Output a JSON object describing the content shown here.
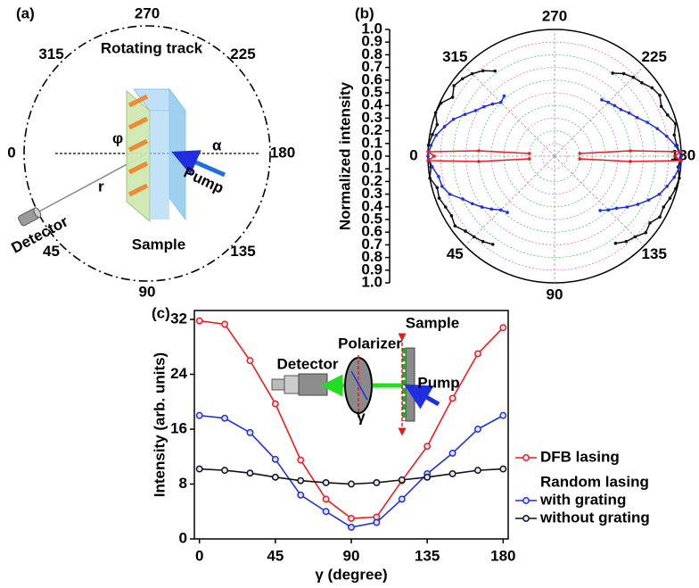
{
  "diagram_a": {
    "panel_label": "(a)",
    "track_label": "Rotating track",
    "angle_labels": [
      0,
      45,
      90,
      135,
      180,
      225,
      270,
      315
    ],
    "phi": "φ",
    "alpha": "α",
    "radius": "r",
    "pump": "Pump",
    "detector": "Detector",
    "sample": "Sample"
  },
  "chart_data": [
    {
      "type": "polar",
      "panel_label": "(b)",
      "y_label": "Normalized intensity",
      "rlim": [
        0,
        1
      ],
      "rticks": [
        {
          "value": 0,
          "label": "0.0"
        },
        {
          "value": 0.1,
          "label": "0.1"
        },
        {
          "value": 0.2,
          "label": "0.2"
        },
        {
          "value": 0.3,
          "label": "0.3"
        },
        {
          "value": 0.4,
          "label": "0.4"
        },
        {
          "value": 0.5,
          "label": "0.5"
        },
        {
          "value": 0.6,
          "label": "0.6"
        },
        {
          "value": 0.7,
          "label": "0.7"
        },
        {
          "value": 0.8,
          "label": "0.8"
        },
        {
          "value": 0.9,
          "label": "0.9"
        },
        {
          "value": 1,
          "label": "1.0"
        }
      ],
      "thetaticks": [
        0,
        45,
        90,
        135,
        180,
        225,
        270,
        315
      ],
      "series": [
        {
          "color": "#111111",
          "theta": [
            305,
            310,
            315,
            320,
            325,
            330,
            335,
            340,
            345,
            350,
            355,
            0,
            5,
            10,
            15,
            20,
            25,
            30,
            35,
            40,
            45,
            50,
            55,
            null,
            125,
            130,
            135,
            140,
            145,
            150,
            155,
            160,
            165,
            170,
            175,
            180,
            185,
            190,
            195,
            200,
            205,
            210,
            215,
            220,
            225,
            230,
            235
          ],
          "r": [
            0.82,
            0.88,
            0.92,
            0.95,
            0.97,
            0.93,
            0.99,
            1.0,
            0.96,
            0.98,
            1.0,
            1.0,
            0.98,
            1.0,
            0.96,
            0.97,
            0.95,
            0.94,
            0.96,
            0.92,
            0.9,
            0.88,
            0.85,
            null,
            0.84,
            0.88,
            0.9,
            0.94,
            0.92,
            0.96,
            0.95,
            0.97,
            0.99,
            1.0,
            0.98,
            1.0,
            0.97,
            0.96,
            0.99,
            0.95,
            0.93,
            0.96,
            0.94,
            0.9,
            0.88,
            0.85,
            0.8
          ]
        },
        {
          "color": "#1f2fe0",
          "theta": [
            310,
            315,
            320,
            325,
            330,
            335,
            340,
            345,
            350,
            355,
            0,
            5,
            10,
            15,
            20,
            25,
            30,
            35,
            40,
            45,
            50,
            null,
            130,
            135,
            140,
            145,
            150,
            155,
            160,
            165,
            170,
            175,
            180,
            185,
            190,
            195,
            200,
            205,
            210,
            215,
            220,
            225,
            230
          ],
          "r": [
            0.62,
            0.6,
            0.64,
            0.68,
            0.72,
            0.78,
            0.85,
            0.9,
            0.95,
            0.98,
            1.0,
            0.97,
            0.93,
            0.92,
            0.88,
            0.8,
            0.75,
            0.7,
            0.65,
            0.6,
            0.58,
            null,
            0.56,
            0.6,
            0.64,
            0.7,
            0.76,
            0.82,
            0.88,
            0.92,
            0.96,
            0.99,
            1.0,
            0.96,
            0.9,
            0.84,
            0.78,
            0.72,
            0.68,
            0.64,
            0.62,
            0.6,
            0.58
          ]
        },
        {
          "color": "#ee1c1c",
          "theta": [
            354,
            356,
            358,
            0,
            2,
            4,
            6,
            null,
            174,
            176,
            178,
            180,
            182,
            184,
            186
          ],
          "r": [
            0.2,
            0.6,
            1.0,
            0.95,
            1.0,
            0.6,
            0.2,
            null,
            0.2,
            0.6,
            1.0,
            0.95,
            1.0,
            0.6,
            0.2
          ]
        }
      ]
    },
    {
      "type": "line",
      "panel_label": "(c)",
      "x_label": "γ (degree)",
      "y_label": "Intensity (arb. units)",
      "x": [
        0,
        15,
        30,
        45,
        60,
        75,
        90,
        105,
        120,
        135,
        150,
        165,
        180
      ],
      "xlim": [
        -3,
        183
      ],
      "xticks": [
        0,
        45,
        90,
        135,
        180
      ],
      "ylim": [
        0,
        33.3
      ],
      "yticks": [
        0,
        8,
        16,
        24,
        32
      ],
      "legend": "right",
      "legend_heading": "Random lasing",
      "series": [
        {
          "name": "DFB lasing",
          "color": "#ee1c1c",
          "values": [
            31.8,
            31.3,
            26,
            19.7,
            11.5,
            5.8,
            3.0,
            3.2,
            8.5,
            13.5,
            20.5,
            27,
            30.8
          ]
        },
        {
          "name": "with grating",
          "color": "#1f2fe0",
          "values": [
            18,
            17.6,
            15.5,
            11.6,
            6.4,
            4.0,
            1.7,
            2.4,
            5.8,
            9.5,
            12.5,
            16,
            18
          ]
        },
        {
          "name": "without grating",
          "color": "#111111",
          "values": [
            10.2,
            10,
            9.6,
            9.0,
            8.5,
            8.2,
            8.0,
            8.2,
            8.6,
            9.0,
            9.5,
            10,
            10.2
          ]
        }
      ],
      "annotations": [
        "Sample",
        "Polarizer",
        "Detector",
        "Pump",
        "γ"
      ]
    }
  ]
}
